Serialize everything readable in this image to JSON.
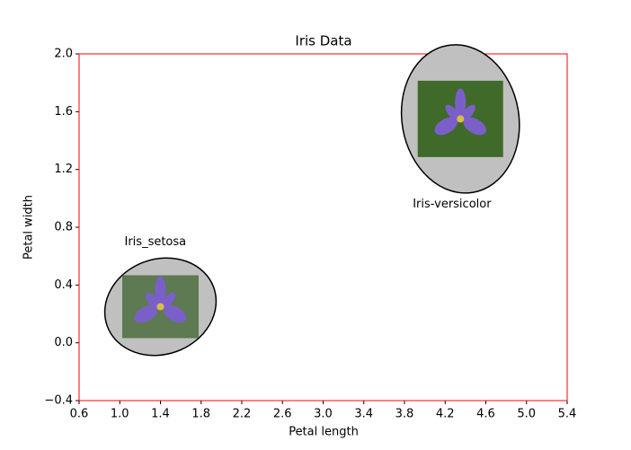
{
  "chart_data": {
    "type": "scatter",
    "title": "Iris Data",
    "x_label": "Petal length",
    "y_label": "Petal width",
    "series": [
      {
        "name": "Iris_setosa",
        "color": "#c0c0c0",
        "x": [
          1.4
        ],
        "values": [
          0.25
        ]
      },
      {
        "name": "Iris-versicolor",
        "color": "#c0c0c0",
        "x": [
          4.35
        ],
        "values": [
          1.55
        ]
      }
    ],
    "xlim": [
      0.6,
      5.4
    ],
    "xticks": [
      0.6,
      {
        "value": 1.0,
        "label": "1.0"
      },
      1.4,
      1.8,
      2.2,
      2.6,
      {
        "value": 3.0,
        "label": "3.0"
      },
      3.4,
      3.8,
      4.2,
      4.6,
      {
        "value": 5.0,
        "label": "5.0"
      },
      5.4
    ],
    "ylim": [
      -0.4,
      2.0
    ],
    "yticks": [
      {
        "value": -0.4,
        "label": "−0.4"
      },
      {
        "value": 0.0,
        "label": "0.0"
      },
      0.4,
      0.8,
      1.2,
      1.6,
      {
        "value": 2.0,
        "label": "2.0"
      }
    ],
    "spine_color": "#ff0000"
  }
}
